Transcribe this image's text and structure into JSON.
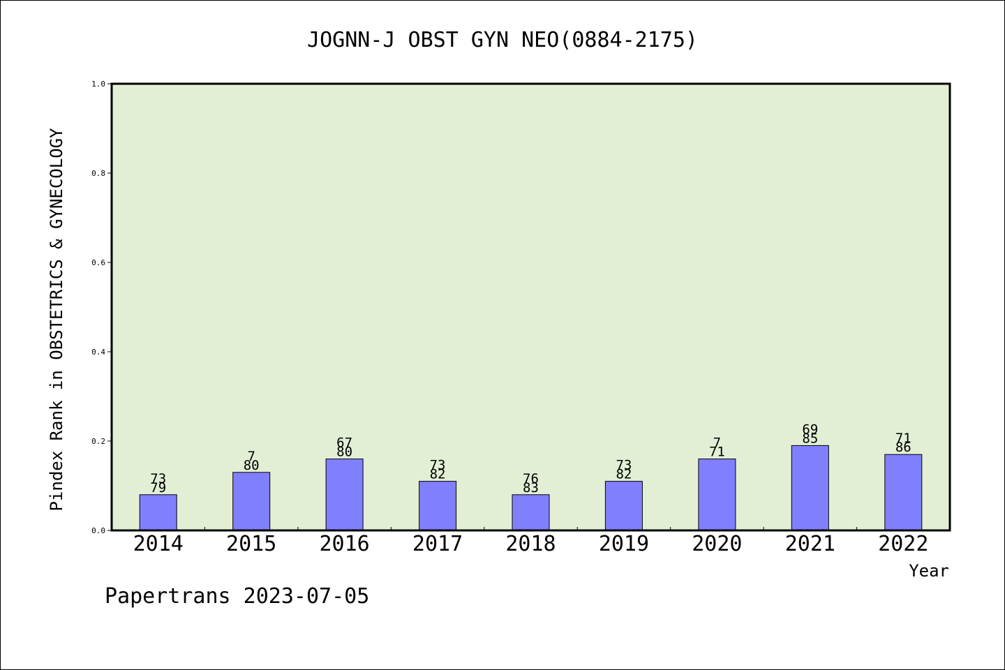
{
  "chart_data": {
    "type": "bar",
    "title": "JOGNN-J OBST GYN NEO(0884-2175)",
    "xlabel": "Year",
    "ylabel": "Pindex Rank in OBSTETRICS & GYNECOLOGY",
    "footer": "Papertrans 2023-07-05",
    "ylim": [
      0,
      1.0
    ],
    "yticks": [
      "0.0",
      "0.2",
      "0.4",
      "0.6",
      "0.8",
      "1.0"
    ],
    "grid": false,
    "categories": [
      "2014",
      "2015",
      "2016",
      "2017",
      "2018",
      "2019",
      "2020",
      "2021",
      "2022"
    ],
    "values": [
      0.08,
      0.13,
      0.16,
      0.11,
      0.08,
      0.11,
      0.16,
      0.19,
      0.17
    ],
    "labels_top": [
      "73",
      "7",
      "67",
      "73",
      "76",
      "73",
      "7",
      "69",
      "71"
    ],
    "labels_bottom": [
      "79",
      "80",
      "80",
      "82",
      "83",
      "82",
      "71",
      "85",
      "86"
    ],
    "colors": {
      "plot_bg": "#e2efd5",
      "bar": "#8080ff",
      "axis": "#000000"
    }
  }
}
